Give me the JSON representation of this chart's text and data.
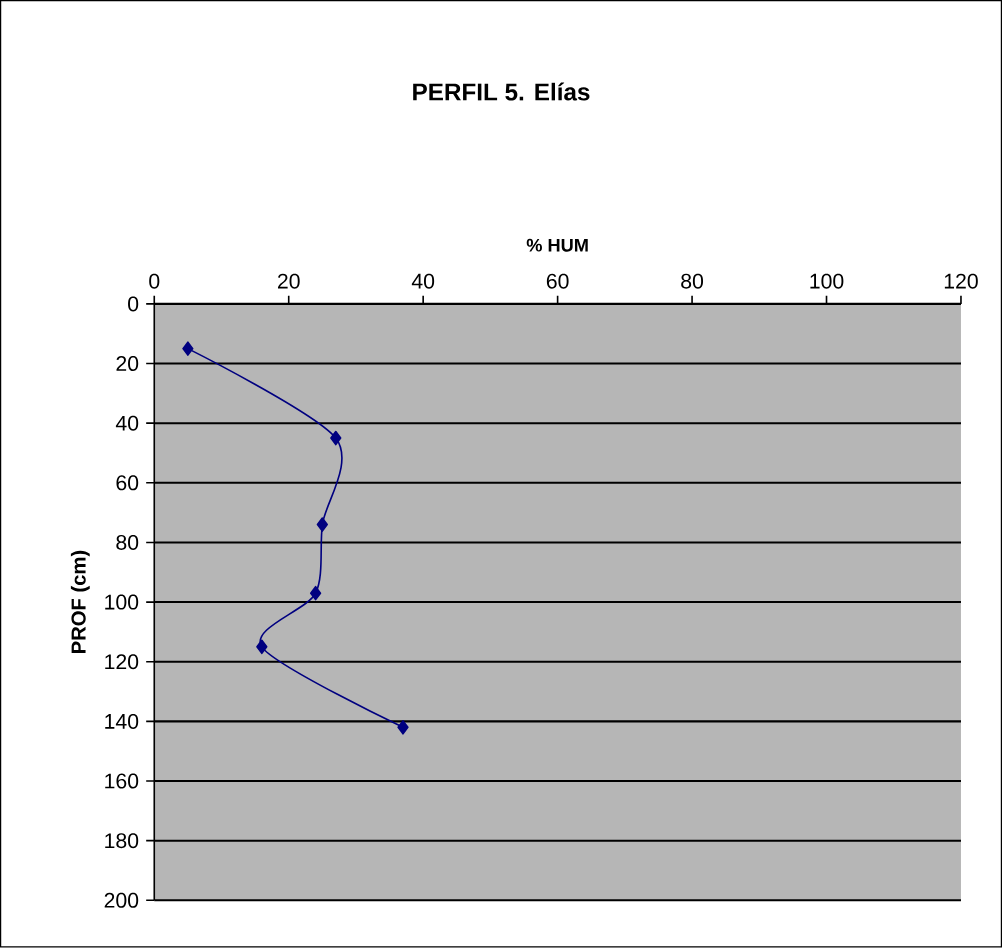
{
  "chart_data": {
    "type": "line",
    "title": "PERFIL 5. Elías",
    "xlabel": "% HUM",
    "ylabel": "PROF (cm)",
    "x": [
      5,
      27,
      25,
      24,
      16,
      37
    ],
    "series": [
      {
        "color": "#000080",
        "values": [
          15,
          45,
          74,
          97,
          115,
          142
        ]
      }
    ],
    "xlim": [
      0,
      120
    ],
    "xticks": [
      0,
      20,
      40,
      60,
      80,
      100,
      120
    ],
    "ylim": [
      200,
      0
    ],
    "yticks": [
      0,
      20,
      40,
      60,
      80,
      100,
      120,
      140,
      160,
      180,
      200
    ],
    "grid": "y",
    "marker": "diamond",
    "line_style": "solid"
  }
}
